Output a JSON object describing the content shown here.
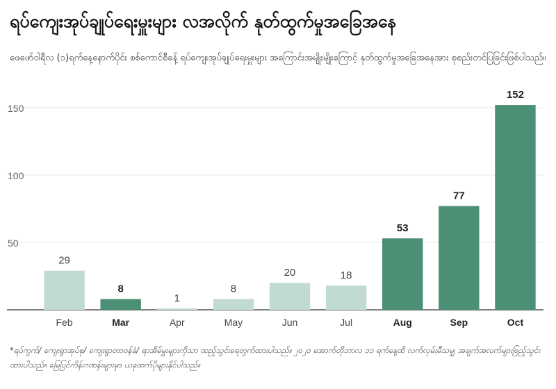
{
  "header": {
    "title": "ရပ်ကျေးအုပ်ချုပ်ရေးမှူးများ လအလိုက် နုတ်ထွက်မှုအခြေအနေ",
    "subtitle": "ဖေဖော်ဝါရီလ (၁)ရက်နေ့နောက်ပိုင်း စစ်ကောင်စီခန့် ရပ်ကျေးအုပ်ချုပ်ရေးမှူးများ အကြောင်းအမျိုးမျိုးကြောင့် နုတ်ထွက်မှုအခြေအနေအား စုစည်းတင်ပြခြင်းဖြစ်ပါသည်။"
  },
  "footnote": "*ရပ်ကွက်/ ကျေးရွာအုပ်စု/ ကျေးရွာတာဝန်ခံ/ ရာအိမ်မှူးများကိုသာ ထည့်သွင်းရေတွက်ထားပါသည်။ ၂၀၂၁ အောက်တိုဘာလ ၁၁ ရက်နေ့ထိ လက်လှမ်းမီသမျှ အချက်အလက်များဖြည့်သွင်းထားပါသည်။ မြေပြင်ကိန်းဂဏန်းများမှာ ယခုထက်ပိုများနိုင်ပါသည်။",
  "colors": {
    "highlight": "#4b8f74",
    "muted": "#c2dbd0",
    "grid": "#e4e4e4",
    "axis": "#333333"
  },
  "chart_data": {
    "type": "bar",
    "categories": [
      "Feb",
      "Mar",
      "Apr",
      "May",
      "Jun",
      "Jul",
      "Aug",
      "Sep",
      "Oct"
    ],
    "values": [
      29,
      8,
      1,
      8,
      20,
      18,
      53,
      77,
      152
    ],
    "highlighted": [
      false,
      true,
      false,
      false,
      false,
      false,
      true,
      true,
      true
    ],
    "yticks": [
      50,
      100,
      150
    ],
    "ylim": [
      0,
      150
    ],
    "grid": true,
    "data_labels": true,
    "xlabel": "",
    "ylabel": ""
  }
}
